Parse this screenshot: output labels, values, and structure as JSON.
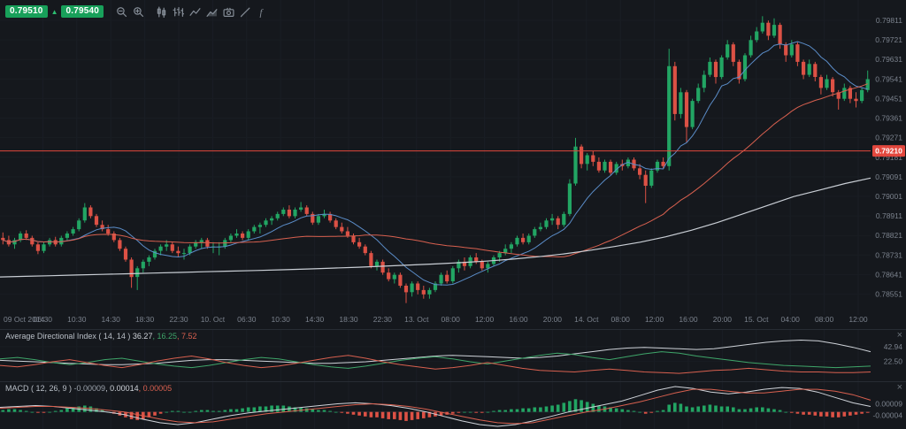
{
  "quote": {
    "bid": "0.79510",
    "ask": "0.79540",
    "direction_glyph": "▲"
  },
  "panels": {
    "close_glyph": "×"
  },
  "toolbar": {
    "buttons": [
      {
        "id": "zoom-out"
      },
      {
        "id": "zoom-in"
      },
      {
        "id": "chart-style-candles"
      },
      {
        "id": "chart-style-bars"
      },
      {
        "id": "chart-style-line"
      },
      {
        "id": "chart-style-area"
      },
      {
        "id": "screenshot"
      },
      {
        "id": "draw-tool"
      },
      {
        "id": "indicators"
      }
    ]
  },
  "colors": {
    "candle_up": "#22a563",
    "candle_down": "#dc5145",
    "ma_fast": "#5b8dc9",
    "ma_slow": "#d8604f",
    "ma_long": "#c9ced5",
    "price_line": "#e2473d",
    "badge_green": "#18a05a",
    "axis_text": "#7b828d",
    "background": "#15181d"
  },
  "chart_data": {
    "type": "candlestick",
    "price_base": 0.78,
    "price_unit": 0.0001,
    "price_line": {
      "price": 0.7921,
      "label": "0.79210"
    },
    "price_axis": {
      "min": 0.7848,
      "max": 0.7988,
      "ticks": [
        "0.79811",
        "0.79721",
        "0.79631",
        "0.79541",
        "0.79451",
        "0.79361",
        "0.79271",
        "0.79181",
        "0.79091",
        "0.79001",
        "0.78911",
        "0.78821",
        "0.78731",
        "0.78641",
        "0.78551"
      ]
    },
    "time_axis": {
      "labels": [
        "09 Oct 2014",
        "06:30",
        "10:30",
        "14:30",
        "18:30",
        "22:30",
        "10. Oct",
        "06:30",
        "10:30",
        "14:30",
        "18:30",
        "22:30",
        "13. Oct",
        "08:00",
        "12:00",
        "16:00",
        "20:00",
        "14. Oct",
        "08:00",
        "12:00",
        "16:00",
        "20:00",
        "15. Oct",
        "04:00",
        "08:00",
        "12:00"
      ]
    },
    "candles_ohlc_pips": [
      [
        81,
        83.5,
        78,
        80
      ],
      [
        80,
        82,
        77,
        78
      ],
      [
        78,
        81,
        76,
        80
      ],
      [
        80,
        84,
        79,
        83
      ],
      [
        83,
        84.5,
        80,
        81
      ],
      [
        81,
        82,
        77,
        78
      ],
      [
        78,
        79,
        73.5,
        75
      ],
      [
        75,
        79,
        74,
        78
      ],
      [
        78,
        81,
        77,
        80
      ],
      [
        80,
        81.5,
        77,
        78
      ],
      [
        78,
        82,
        77,
        81
      ],
      [
        81,
        84,
        80,
        83
      ],
      [
        83,
        86,
        82,
        85
      ],
      [
        85,
        90,
        84,
        89
      ],
      [
        89,
        97,
        88,
        95
      ],
      [
        95,
        96,
        90,
        91
      ],
      [
        91,
        92,
        86,
        87
      ],
      [
        87,
        89,
        84,
        85
      ],
      [
        85,
        87,
        82,
        83
      ],
      [
        83,
        84,
        79,
        80
      ],
      [
        80,
        81,
        75,
        76
      ],
      [
        76,
        77,
        70,
        71
      ],
      [
        71,
        72,
        58,
        63
      ],
      [
        63,
        68,
        57,
        67
      ],
      [
        67,
        71,
        65,
        70
      ],
      [
        70,
        73,
        68,
        72
      ],
      [
        72,
        76,
        71,
        75
      ],
      [
        75,
        78,
        73,
        77
      ],
      [
        77,
        80,
        75,
        78
      ],
      [
        78,
        79,
        74,
        75
      ],
      [
        75,
        77,
        72,
        74
      ],
      [
        74,
        76,
        71,
        74
      ],
      [
        74,
        78,
        73,
        77
      ],
      [
        77,
        80,
        76,
        79
      ],
      [
        79,
        81,
        76,
        80
      ],
      [
        80,
        81,
        76,
        77
      ],
      [
        77,
        79,
        74,
        77
      ],
      [
        77,
        79,
        73,
        77
      ],
      [
        77,
        81,
        76,
        80
      ],
      [
        80,
        83,
        79,
        82
      ],
      [
        82,
        85,
        81,
        83
      ],
      [
        83,
        84,
        80,
        81
      ],
      [
        81,
        85,
        80,
        84
      ],
      [
        84,
        87,
        83,
        86
      ],
      [
        86,
        88,
        83,
        87
      ],
      [
        87,
        90,
        86,
        89
      ],
      [
        89,
        91,
        87,
        90
      ],
      [
        90,
        93,
        89,
        92
      ],
      [
        92,
        95,
        91,
        94
      ],
      [
        94,
        96,
        90,
        91
      ],
      [
        91,
        95,
        90,
        94
      ],
      [
        94,
        97.5,
        93,
        95
      ],
      [
        95,
        96,
        91,
        92
      ],
      [
        92,
        93,
        87,
        88
      ],
      [
        88,
        92,
        87,
        91
      ],
      [
        91,
        94,
        90,
        92
      ],
      [
        92,
        93,
        88,
        89
      ],
      [
        89,
        90,
        85,
        86
      ],
      [
        86,
        88,
        83,
        84
      ],
      [
        84,
        86,
        81,
        82
      ],
      [
        82,
        83,
        78,
        79
      ],
      [
        79,
        81,
        76,
        77
      ],
      [
        77,
        78,
        73,
        74
      ],
      [
        74,
        75,
        67,
        68
      ],
      [
        68,
        71,
        66,
        70
      ],
      [
        70,
        71,
        64,
        65
      ],
      [
        65,
        67,
        61,
        62
      ],
      [
        62,
        65,
        60,
        64
      ],
      [
        64,
        65,
        58,
        59
      ],
      [
        59,
        60,
        51,
        56
      ],
      [
        56,
        61,
        54,
        60
      ],
      [
        60,
        61,
        55,
        57
      ],
      [
        57,
        59,
        53,
        55
      ],
      [
        55,
        58,
        53,
        57
      ],
      [
        57,
        61,
        56,
        60
      ],
      [
        60,
        65,
        59,
        64
      ],
      [
        64,
        66,
        60,
        61
      ],
      [
        61,
        68,
        60,
        67
      ],
      [
        67,
        71,
        65,
        70
      ],
      [
        70,
        72,
        66,
        68
      ],
      [
        68,
        73,
        67,
        72
      ],
      [
        72,
        74,
        69,
        70
      ],
      [
        70,
        71,
        66,
        67
      ],
      [
        67,
        70,
        65,
        69
      ],
      [
        69,
        73,
        68,
        72
      ],
      [
        72,
        75,
        70,
        74
      ],
      [
        74,
        78,
        73,
        76
      ],
      [
        76,
        79,
        74,
        78
      ],
      [
        78,
        82,
        77,
        81
      ],
      [
        81,
        83,
        78,
        79
      ],
      [
        79,
        83,
        78,
        82
      ],
      [
        82,
        86,
        81,
        85
      ],
      [
        85,
        88,
        84,
        86
      ],
      [
        86,
        90,
        85,
        89
      ],
      [
        89,
        92,
        87,
        90
      ],
      [
        90,
        91,
        85,
        87
      ],
      [
        87,
        93,
        86,
        92
      ],
      [
        92,
        108,
        91,
        106
      ],
      [
        106,
        127,
        105,
        123
      ],
      [
        123,
        124,
        113,
        115
      ],
      [
        115,
        120,
        112,
        119
      ],
      [
        119,
        121,
        114,
        116
      ],
      [
        116,
        118,
        111,
        112
      ],
      [
        112,
        117,
        111,
        116
      ],
      [
        116,
        117,
        110,
        111
      ],
      [
        111,
        116,
        110,
        115
      ],
      [
        115,
        117,
        112,
        114
      ],
      [
        114,
        118,
        113,
        117
      ],
      [
        117,
        118,
        112,
        113
      ],
      [
        113,
        115,
        108,
        110
      ],
      [
        110,
        112,
        97,
        105
      ],
      [
        105,
        113,
        104,
        112
      ],
      [
        112,
        117,
        111,
        116
      ],
      [
        116,
        118,
        113,
        114
      ],
      [
        114,
        168,
        112,
        160
      ],
      [
        160,
        162,
        135,
        138
      ],
      [
        138,
        150,
        136,
        148
      ],
      [
        148,
        149,
        125,
        132
      ],
      [
        132,
        145,
        131,
        144
      ],
      [
        144,
        152,
        143,
        150
      ],
      [
        150,
        158,
        148,
        156
      ],
      [
        156,
        164,
        155,
        162
      ],
      [
        162,
        163,
        152,
        155
      ],
      [
        155,
        165,
        154,
        164
      ],
      [
        164,
        172,
        163,
        170
      ],
      [
        170,
        171,
        160,
        162
      ],
      [
        162,
        163,
        152,
        154
      ],
      [
        154,
        166,
        153,
        165
      ],
      [
        165,
        174,
        164,
        172
      ],
      [
        172,
        178,
        171,
        176
      ],
      [
        176,
        183,
        175,
        180
      ],
      [
        180,
        181,
        172,
        174
      ],
      [
        174,
        182,
        173,
        179
      ],
      [
        179,
        180,
        168,
        170
      ],
      [
        170,
        171,
        162,
        165
      ],
      [
        165,
        172,
        164,
        170
      ],
      [
        170,
        171,
        160,
        162
      ],
      [
        162,
        163,
        154,
        156
      ],
      [
        156,
        163,
        155,
        161
      ],
      [
        161,
        162,
        153,
        155
      ],
      [
        155,
        156,
        147,
        150
      ],
      [
        150,
        156,
        149,
        154
      ],
      [
        154,
        155,
        146,
        148
      ],
      [
        148,
        149,
        140,
        145
      ],
      [
        145,
        152,
        144,
        150
      ],
      [
        150,
        151,
        143,
        145
      ],
      [
        145,
        148,
        141,
        144
      ],
      [
        144,
        150,
        143,
        149
      ],
      [
        149,
        158,
        148,
        154
      ]
    ],
    "moving_averages": {
      "fast_period": 10,
      "slow_period": 40,
      "long_points_pips": [
        63,
        63.3,
        63.6,
        63.9,
        64.2,
        64.5,
        64.8,
        65.1,
        65.4,
        65.7,
        66,
        66.3,
        66.7,
        67.1,
        67.5,
        68,
        68.5,
        69,
        69.6,
        70.3,
        71.2,
        72.3,
        73.6,
        75.2,
        77,
        79,
        81.5,
        84.5,
        88,
        92,
        96,
        100,
        103,
        106,
        108.5
      ]
    },
    "indicators": [
      {
        "id": "adx",
        "name": "Average Directional Index ( 14, 14 )",
        "values": [
          "36.27",
          "16.25",
          "7.52"
        ],
        "value_colors": [
          "#cfd3d9",
          "#3fa66a",
          "#d8604f"
        ],
        "series_colors": [
          "#cfd3d9",
          "#3fa66a",
          "#d8604f"
        ],
        "axis_ticks": [
          "42.94",
          "22.50"
        ],
        "range": [
          0,
          60
        ],
        "series": {
          "adx": [
            24,
            23,
            22,
            21,
            20,
            19,
            18,
            18,
            19,
            20,
            22,
            24,
            25,
            25,
            24,
            23,
            22,
            21,
            20,
            20,
            21,
            22,
            24,
            26,
            28,
            30,
            31,
            30,
            29,
            28,
            27,
            28,
            30,
            33,
            36,
            39,
            41,
            42,
            41,
            40,
            39,
            40,
            43,
            46,
            49,
            51,
            52,
            51,
            47,
            42,
            36
          ],
          "di_plus": [
            26,
            28,
            25,
            21,
            18,
            21,
            25,
            27,
            23,
            19,
            16,
            14,
            17,
            21,
            25,
            28,
            26,
            22,
            18,
            15,
            13,
            16,
            20,
            24,
            27,
            29,
            26,
            22,
            19,
            23,
            27,
            31,
            34,
            32,
            28,
            25,
            29,
            33,
            36,
            34,
            30,
            27,
            24,
            21,
            19,
            17,
            16,
            15,
            14,
            15,
            16
          ],
          "di_minus": [
            17,
            15,
            18,
            22,
            25,
            21,
            17,
            14,
            18,
            23,
            27,
            30,
            26,
            21,
            17,
            14,
            16,
            20,
            24,
            28,
            31,
            27,
            22,
            18,
            15,
            12,
            14,
            17,
            21,
            17,
            13,
            10,
            9,
            8,
            10,
            12,
            10,
            8,
            7,
            6,
            8,
            10,
            11,
            13,
            11,
            9,
            8,
            8,
            7,
            7,
            8
          ]
        }
      },
      {
        "id": "macd",
        "name": "MACD ( 12, 26, 9 )",
        "values": [
          "-0.00009",
          "0.00014",
          "0.00005"
        ],
        "value_colors": [
          "#9aa1aa",
          "#cfd3d9",
          "#d8604f"
        ],
        "series_colors": [
          "#cfd3d9",
          "#d8604f"
        ],
        "axis_ticks": [
          "0.00009",
          "-0.00004"
        ],
        "display_range_1e5": [
          -16,
          30
        ],
        "histogram_1e5": [
          2,
          3,
          3,
          2,
          1,
          0,
          -1,
          -1,
          0,
          1,
          2,
          4,
          5,
          6,
          7,
          6,
          4,
          2,
          0,
          -2,
          -4,
          -6,
          -8,
          -9,
          -8,
          -6,
          -4,
          -2,
          0,
          1,
          1,
          0,
          0,
          1,
          2,
          2,
          1,
          1,
          2,
          3,
          3,
          4,
          5,
          5,
          6,
          6,
          7,
          7,
          7,
          6,
          5,
          5,
          4,
          3,
          2,
          2,
          1,
          0,
          -1,
          -2,
          -3,
          -4,
          -5,
          -6,
          -6,
          -7,
          -8,
          -8,
          -9,
          -10,
          -9,
          -8,
          -7,
          -6,
          -5,
          -4,
          -3,
          -2,
          -1,
          0,
          0,
          -1,
          -1,
          0,
          1,
          2,
          2,
          3,
          3,
          4,
          4,
          5,
          5,
          6,
          7,
          8,
          10,
          12,
          14,
          13,
          11,
          9,
          7,
          6,
          5,
          4,
          3,
          2,
          1,
          0,
          -2,
          -1,
          1,
          2,
          8,
          10,
          9,
          6,
          5,
          6,
          7,
          8,
          7,
          6,
          6,
          5,
          3,
          3,
          4,
          5,
          5,
          4,
          3,
          2,
          0,
          -1,
          -2,
          -3,
          -3,
          -4,
          -5,
          -5,
          -6,
          -6,
          -5,
          -4,
          -3,
          -2,
          -1
        ],
        "macd_1e5": [
          5,
          6,
          7,
          6,
          4,
          2,
          0,
          -3,
          -8,
          -12,
          -14,
          -12,
          -8,
          -4,
          -1,
          1,
          3,
          5,
          7,
          9,
          10,
          9,
          7,
          4,
          0,
          -5,
          -10,
          -14,
          -16,
          -14,
          -10,
          -5,
          0,
          4,
          8,
          12,
          18,
          24,
          28,
          26,
          22,
          20,
          22,
          25,
          27,
          26,
          22,
          16,
          10,
          6
        ],
        "signal_1e5": [
          4,
          5,
          6,
          6,
          5,
          4,
          2,
          0,
          -4,
          -8,
          -11,
          -12,
          -11,
          -8,
          -5,
          -2,
          0,
          2,
          4,
          6,
          8,
          9,
          8,
          6,
          3,
          -1,
          -5,
          -9,
          -12,
          -13,
          -12,
          -8,
          -4,
          0,
          3,
          7,
          11,
          16,
          21,
          25,
          25,
          23,
          21,
          21,
          23,
          25,
          25,
          23,
          19,
          13
        ]
      }
    ]
  }
}
